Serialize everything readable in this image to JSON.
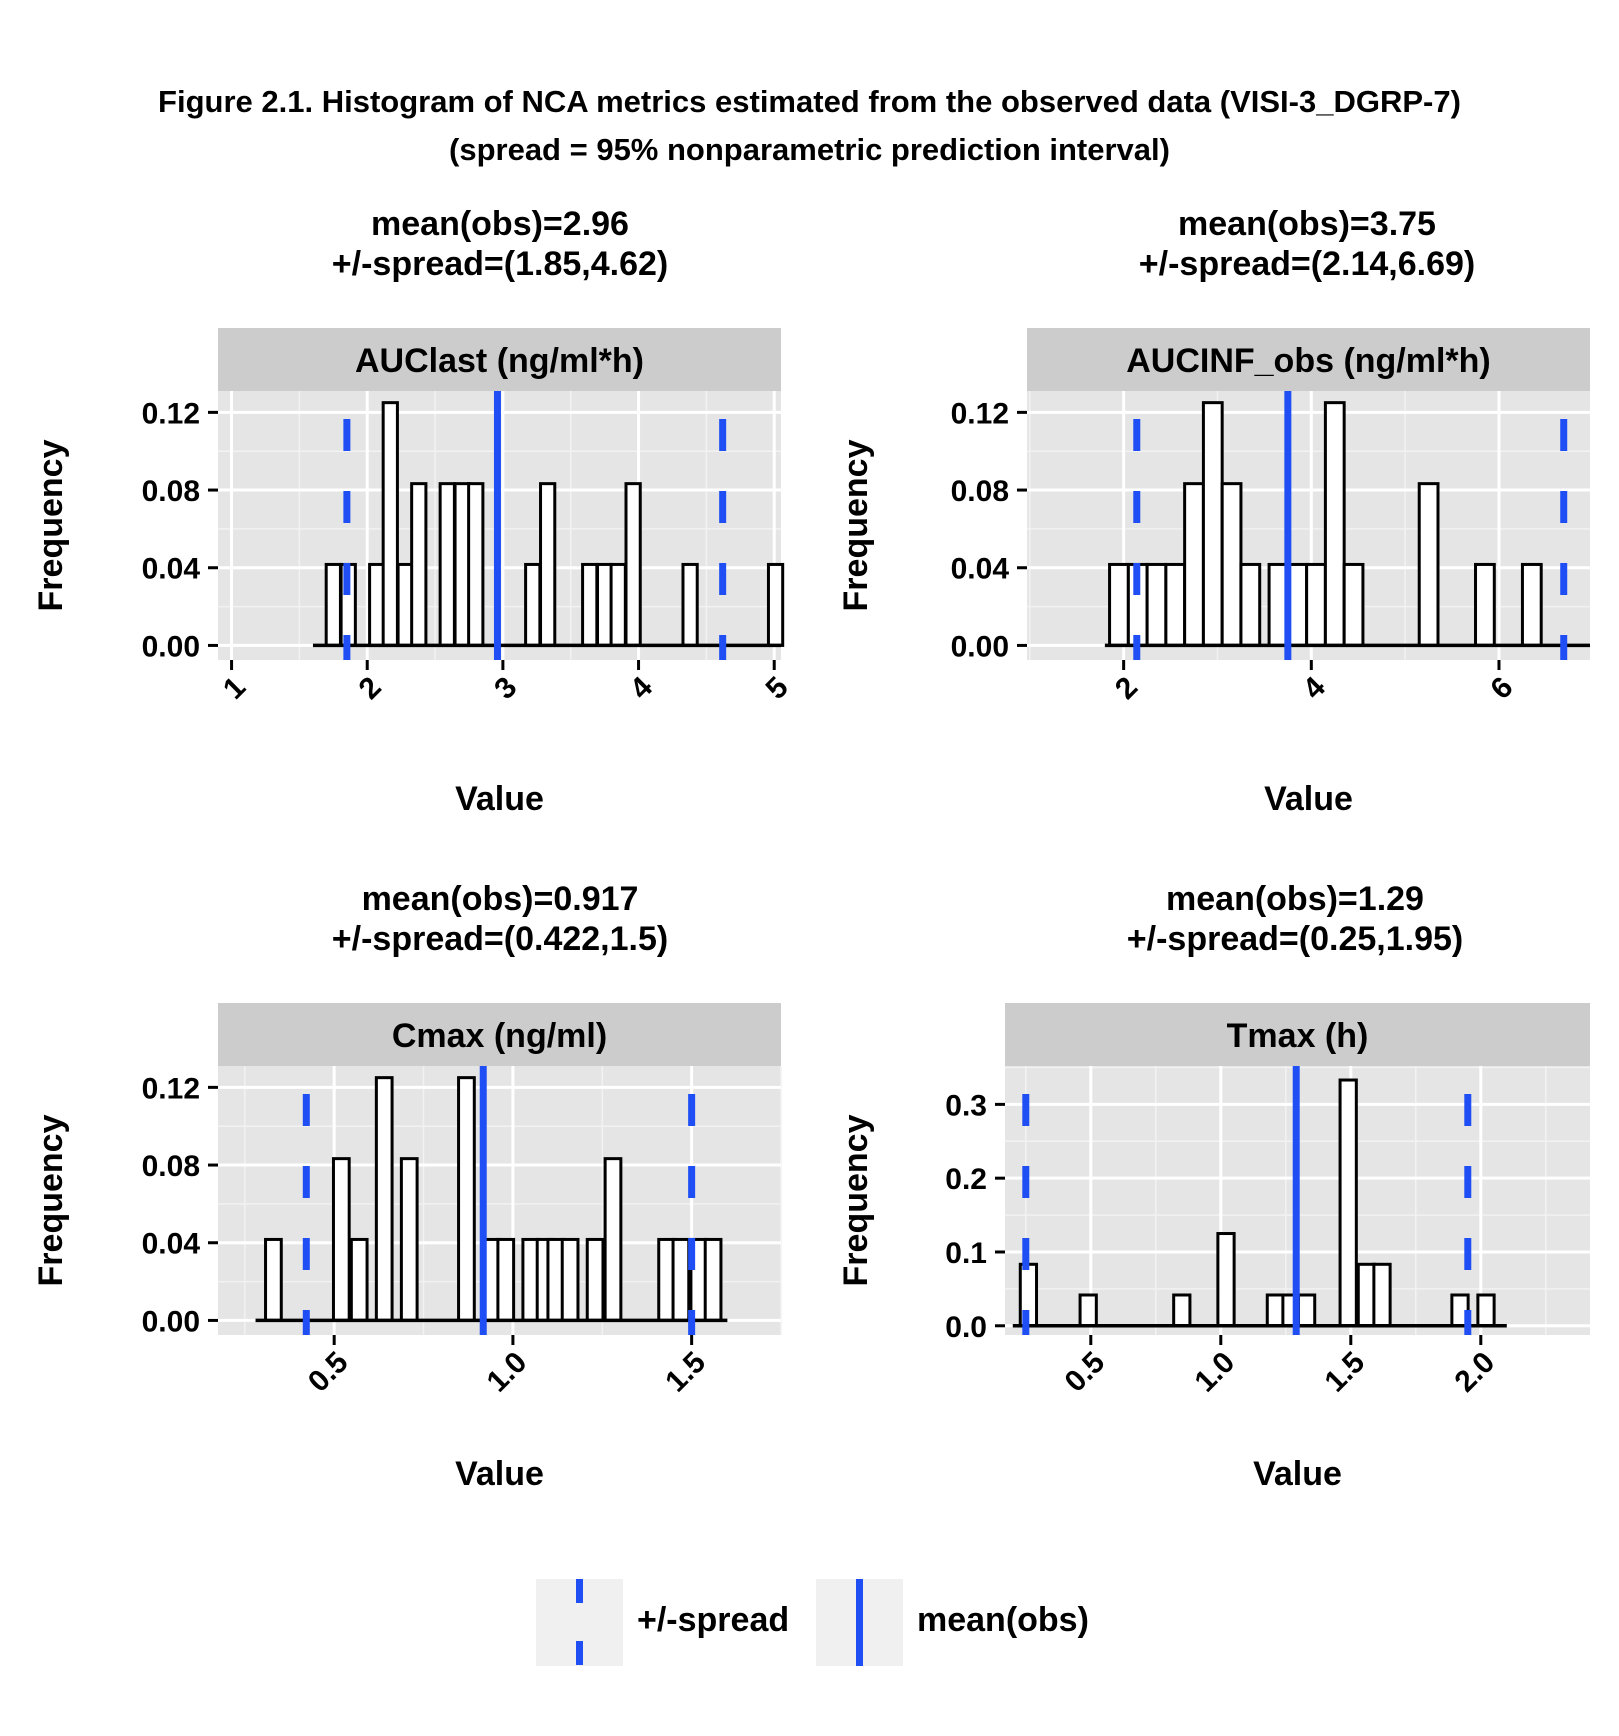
{
  "figure": {
    "title_line1": "Figure 2.1. Histogram of NCA metrics estimated from the observed data (VISI-3_DGRP-7)",
    "title_line2": "(spread = 95% nonparametric prediction interval)"
  },
  "colors": {
    "panel_bg": "#e5e5e5",
    "strip_bg": "#cccccc",
    "grid": "#ffffff",
    "bar_fill": "#ffffff",
    "bar_stroke": "#000000",
    "reference_line": "#1f4ef5"
  },
  "legend": {
    "spread_label": "+/-spread",
    "mean_label": "mean(obs)"
  },
  "chart_data": [
    {
      "type": "bar",
      "strip": "AUClast (ng/ml*h)",
      "title_line1": "mean(obs)=2.96",
      "title_line2": "+/-spread=(1.85,4.62)",
      "xlabel": "Value",
      "ylabel": "Frequency",
      "xlim": [
        0.9,
        5.05
      ],
      "ylim": [
        -0.0075,
        0.131
      ],
      "xticks": [
        1,
        2,
        3,
        4,
        5
      ],
      "xtick_labels": [
        "1",
        "2",
        "3",
        "4",
        "5"
      ],
      "yticks": [
        0,
        0.04,
        0.08,
        0.12
      ],
      "ytick_labels": [
        "0.00",
        "0.04",
        "0.08",
        "0.12"
      ],
      "baseline": [
        1.6,
        5.05
      ],
      "bin_width": 0.105,
      "bins": [
        [
          1.75,
          0.0417
        ],
        [
          1.86,
          0.0417
        ],
        [
          2.07,
          0.0417
        ],
        [
          2.17,
          0.125
        ],
        [
          2.28,
          0.0417
        ],
        [
          2.38,
          0.0833
        ],
        [
          2.59,
          0.0833
        ],
        [
          2.7,
          0.0833
        ],
        [
          2.8,
          0.0833
        ],
        [
          3.22,
          0.0417
        ],
        [
          3.33,
          0.0833
        ],
        [
          3.64,
          0.0417
        ],
        [
          3.75,
          0.0417
        ],
        [
          3.85,
          0.0417
        ],
        [
          3.96,
          0.0833
        ],
        [
          4.38,
          0.0417
        ],
        [
          5.01,
          0.0417
        ]
      ],
      "mean": 2.96,
      "spread": [
        1.85,
        4.62
      ]
    },
    {
      "type": "bar",
      "strip": "AUCINF_obs (ng/ml*h)",
      "title_line1": "mean(obs)=3.75",
      "title_line2": "+/-spread=(2.14,6.69)",
      "xlabel": "Value",
      "ylabel": "Frequency",
      "xlim": [
        0.97,
        6.97
      ],
      "ylim": [
        -0.0075,
        0.131
      ],
      "xticks": [
        2,
        4,
        6
      ],
      "xtick_labels": [
        "2",
        "4",
        "6"
      ],
      "yticks": [
        0,
        0.04,
        0.08,
        0.12
      ],
      "ytick_labels": [
        "0.00",
        "0.04",
        "0.08",
        "0.12"
      ],
      "baseline": [
        1.8,
        6.97
      ],
      "bin_width": 0.2,
      "bins": [
        [
          1.95,
          0.0417
        ],
        [
          2.15,
          0.0417
        ],
        [
          2.35,
          0.0417
        ],
        [
          2.55,
          0.0417
        ],
        [
          2.75,
          0.0833
        ],
        [
          2.95,
          0.125
        ],
        [
          3.15,
          0.0833
        ],
        [
          3.35,
          0.0417
        ],
        [
          3.65,
          0.0417
        ],
        [
          3.85,
          0.0417
        ],
        [
          4.05,
          0.0417
        ],
        [
          4.25,
          0.125
        ],
        [
          4.45,
          0.0417
        ],
        [
          5.25,
          0.0833
        ],
        [
          5.85,
          0.0417
        ],
        [
          6.35,
          0.0417
        ]
      ],
      "mean": 3.75,
      "spread": [
        2.14,
        6.69
      ]
    },
    {
      "type": "bar",
      "strip": "Cmax (ng/ml)",
      "title_line1": "mean(obs)=0.917",
      "title_line2": "+/-spread=(0.422,1.5)",
      "xlabel": "Value",
      "ylabel": "Frequency",
      "xlim": [
        0.175,
        1.75
      ],
      "ylim": [
        -0.0075,
        0.131
      ],
      "xticks": [
        0.5,
        1.0,
        1.5
      ],
      "xtick_labels": [
        "0.5",
        "1.0",
        "1.5"
      ],
      "yticks": [
        0,
        0.04,
        0.08,
        0.12
      ],
      "ytick_labels": [
        "0.00",
        "0.04",
        "0.08",
        "0.12"
      ],
      "baseline": [
        0.28,
        1.6
      ],
      "bin_width": 0.044,
      "bins": [
        [
          0.33,
          0.0417
        ],
        [
          0.52,
          0.0833
        ],
        [
          0.57,
          0.0417
        ],
        [
          0.64,
          0.125
        ],
        [
          0.71,
          0.0833
        ],
        [
          0.87,
          0.125
        ],
        [
          0.94,
          0.0417
        ],
        [
          0.98,
          0.0417
        ],
        [
          1.05,
          0.0417
        ],
        [
          1.09,
          0.0417
        ],
        [
          1.12,
          0.0417
        ],
        [
          1.16,
          0.0417
        ],
        [
          1.23,
          0.0417
        ],
        [
          1.28,
          0.0833
        ],
        [
          1.43,
          0.0417
        ],
        [
          1.47,
          0.0417
        ],
        [
          1.52,
          0.0417
        ],
        [
          1.56,
          0.0417
        ]
      ],
      "mean": 0.917,
      "spread": [
        0.422,
        1.5
      ]
    },
    {
      "type": "bar",
      "strip": "Tmax (h)",
      "title_line1": "mean(obs)=1.29",
      "title_line2": "+/-spread=(0.25,1.95)",
      "xlabel": "Value",
      "ylabel": "Frequency",
      "xlim": [
        0.17,
        2.42
      ],
      "ylim": [
        -0.0125,
        0.352
      ],
      "xticks": [
        0.5,
        1.0,
        1.5,
        2.0
      ],
      "xtick_labels": [
        "0.5",
        "1.0",
        "1.5",
        "2.0"
      ],
      "yticks": [
        0,
        0.1,
        0.2,
        0.3
      ],
      "ytick_labels": [
        "0.0",
        "0.1",
        "0.2",
        "0.3"
      ],
      "baseline": [
        0.2,
        2.1
      ],
      "bin_width": 0.0625,
      "bins": [
        [
          0.26,
          0.0833
        ],
        [
          0.49,
          0.0417
        ],
        [
          0.85,
          0.0417
        ],
        [
          1.02,
          0.125
        ],
        [
          1.21,
          0.0417
        ],
        [
          1.27,
          0.0417
        ],
        [
          1.33,
          0.0417
        ],
        [
          1.49,
          0.333
        ],
        [
          1.56,
          0.0833
        ],
        [
          1.62,
          0.0833
        ],
        [
          1.92,
          0.0417
        ],
        [
          2.02,
          0.0417
        ]
      ],
      "mean": 1.29,
      "spread": [
        0.25,
        1.95
      ]
    }
  ]
}
